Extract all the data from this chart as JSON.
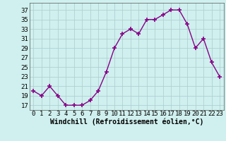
{
  "x": [
    0,
    1,
    2,
    3,
    4,
    5,
    6,
    7,
    8,
    9,
    10,
    11,
    12,
    13,
    14,
    15,
    16,
    17,
    18,
    19,
    20,
    21,
    22,
    23
  ],
  "y": [
    20,
    19,
    21,
    19,
    17,
    17,
    17,
    18,
    20,
    24,
    29,
    32,
    33,
    32,
    35,
    35,
    36,
    37,
    37,
    34,
    29,
    31,
    26,
    23
  ],
  "line_color": "#880088",
  "marker": "+",
  "marker_size": 5,
  "marker_lw": 1.2,
  "bg_color": "#cff0ee",
  "grid_color": "#aacccc",
  "xlabel": "Windchill (Refroidissement éolien,°C)",
  "ylabel_ticks": [
    17,
    19,
    21,
    23,
    25,
    27,
    29,
    31,
    33,
    35,
    37
  ],
  "ylim": [
    16.0,
    38.5
  ],
  "xlim": [
    -0.5,
    23.5
  ],
  "tick_fontsize": 6.5,
  "xlabel_fontsize": 7,
  "line_width": 1.0
}
